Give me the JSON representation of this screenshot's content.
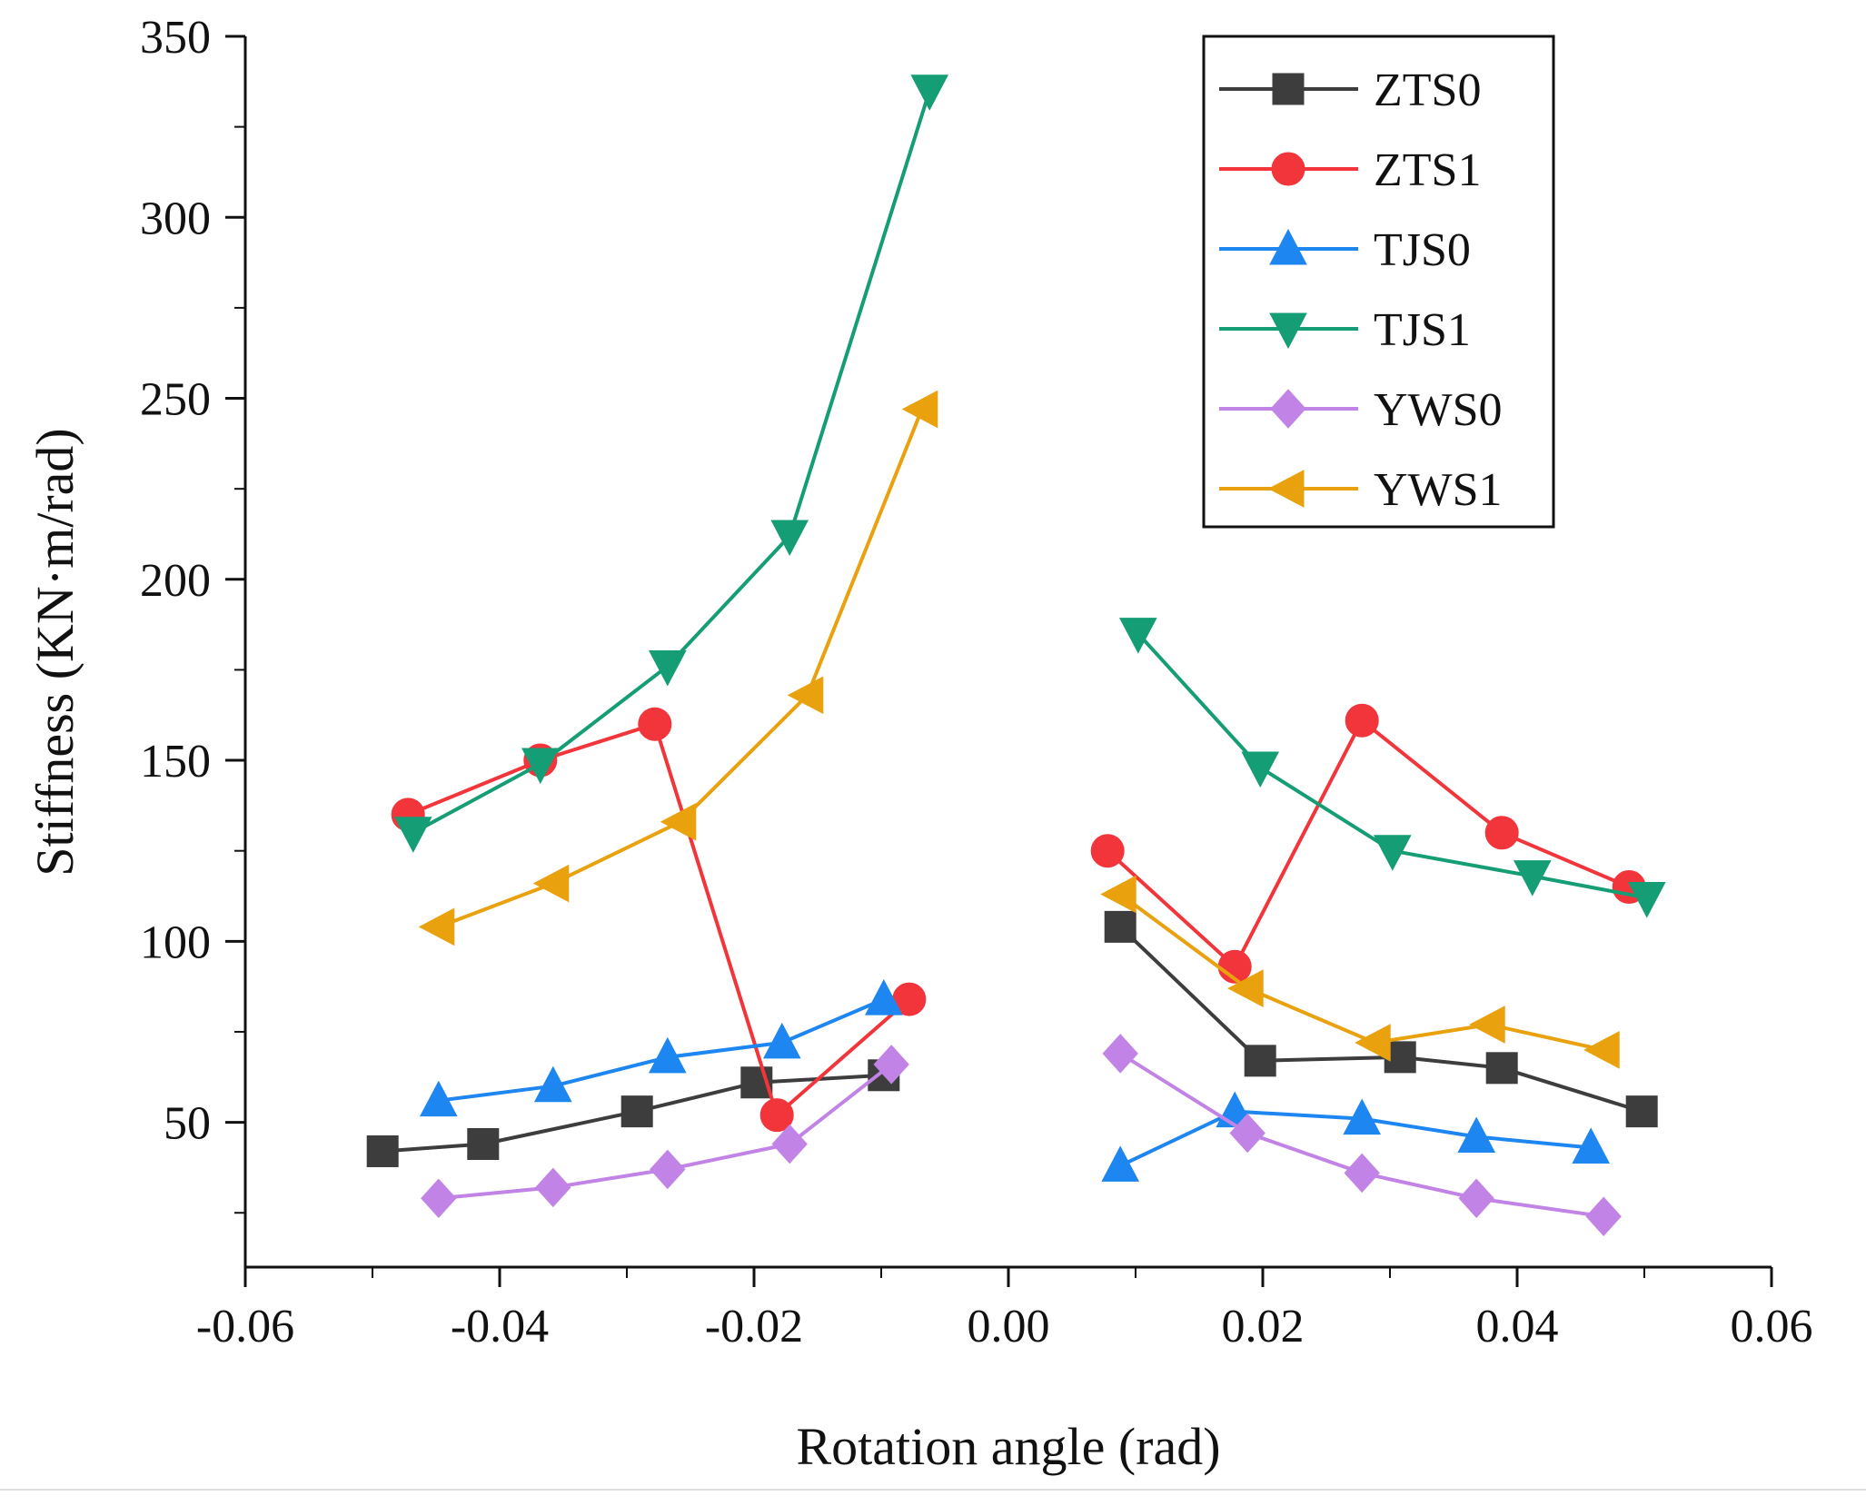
{
  "chart_data": {
    "type": "line",
    "title": "",
    "xlabel": "Rotation angle (rad)",
    "ylabel": "Stiffness (KN·m/rad)",
    "xlim": [
      -0.06,
      0.06
    ],
    "ylim": [
      10,
      350
    ],
    "xticks": [
      -0.06,
      -0.04,
      -0.02,
      0.0,
      0.02,
      0.04,
      0.06
    ],
    "xtick_labels": [
      "-0.06",
      "-0.04",
      "-0.02",
      "0.00",
      "0.02",
      "0.04",
      "0.06"
    ],
    "yticks": [
      50,
      100,
      150,
      200,
      250,
      300,
      350
    ],
    "ytick_labels": [
      "50",
      "100",
      "150",
      "200",
      "250",
      "300",
      "350"
    ],
    "grid": false,
    "legend_position": "top-right",
    "series": [
      {
        "name": "ZTS0",
        "color": "#3d3d3d",
        "marker": "square",
        "segments": [
          [
            [
              -0.0492,
              42
            ],
            [
              -0.0413,
              44
            ],
            [
              -0.0292,
              53
            ],
            [
              -0.0198,
              61
            ],
            [
              -0.0098,
              63
            ]
          ],
          [
            [
              0.0088,
              104
            ],
            [
              0.0198,
              67
            ],
            [
              0.0308,
              68
            ],
            [
              0.0388,
              65
            ],
            [
              0.0498,
              53
            ]
          ]
        ]
      },
      {
        "name": "ZTS1",
        "color": "#f2353a",
        "marker": "circle",
        "segments": [
          [
            [
              -0.0472,
              135
            ],
            [
              -0.0368,
              150
            ],
            [
              -0.0278,
              160
            ],
            [
              -0.0182,
              52
            ],
            [
              -0.0078,
              84
            ]
          ],
          [
            [
              0.0078,
              125
            ],
            [
              0.0178,
              93
            ],
            [
              0.0278,
              161
            ],
            [
              0.0388,
              130
            ],
            [
              0.0488,
              115
            ]
          ]
        ]
      },
      {
        "name": "TJS0",
        "color": "#1d86f0",
        "marker": "triangle-up",
        "segments": [
          [
            [
              -0.0448,
              56
            ],
            [
              -0.0358,
              60
            ],
            [
              -0.0268,
              68
            ],
            [
              -0.0178,
              72
            ],
            [
              -0.0098,
              84
            ]
          ],
          [
            [
              0.0088,
              38
            ],
            [
              0.0178,
              53
            ],
            [
              0.0278,
              51
            ],
            [
              0.0368,
              46
            ],
            [
              0.0458,
              43
            ]
          ]
        ]
      },
      {
        "name": "TJS1",
        "color": "#159d75",
        "marker": "triangle-down",
        "segments": [
          [
            [
              -0.0468,
              130
            ],
            [
              -0.0368,
              149
            ],
            [
              -0.0268,
              176
            ],
            [
              -0.0172,
              212
            ],
            [
              -0.0062,
              335
            ]
          ],
          [
            [
              0.0102,
              185
            ],
            [
              0.0198,
              148
            ],
            [
              0.0302,
              125
            ],
            [
              0.0412,
              118
            ],
            [
              0.0502,
              112
            ]
          ]
        ]
      },
      {
        "name": "YWS0",
        "color": "#c183e5",
        "marker": "diamond",
        "segments": [
          [
            [
              -0.0448,
              29
            ],
            [
              -0.0358,
              32
            ],
            [
              -0.0268,
              37
            ],
            [
              -0.0172,
              44
            ],
            [
              -0.0092,
              66
            ]
          ],
          [
            [
              0.0088,
              69
            ],
            [
              0.0188,
              47
            ],
            [
              0.0278,
              36
            ],
            [
              0.0368,
              29
            ],
            [
              0.0468,
              24
            ]
          ]
        ]
      },
      {
        "name": "YWS1",
        "color": "#e9a10e",
        "marker": "triangle-left",
        "segments": [
          [
            [
              -0.0448,
              104
            ],
            [
              -0.0358,
              116
            ],
            [
              -0.0258,
              133
            ],
            [
              -0.0158,
              168
            ],
            [
              -0.0068,
              247
            ]
          ],
          [
            [
              0.0088,
              113
            ],
            [
              0.0188,
              87
            ],
            [
              0.0288,
              72
            ],
            [
              0.0378,
              77
            ],
            [
              0.0468,
              70
            ]
          ]
        ]
      }
    ]
  }
}
